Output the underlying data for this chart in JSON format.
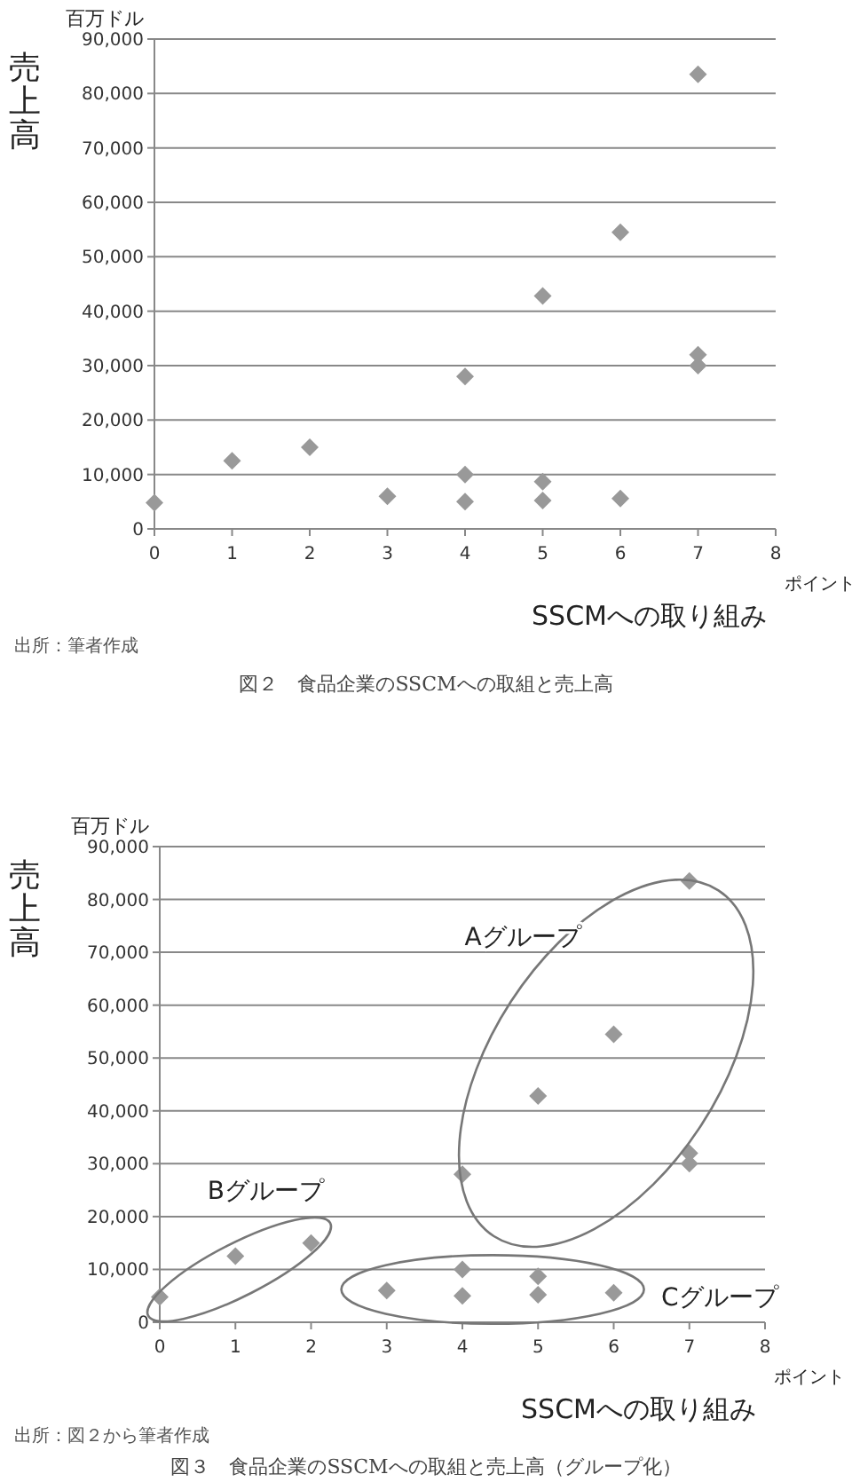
{
  "chart_data": [
    {
      "type": "scatter",
      "title": "図２　食品企業のSSCMへの取組と売上高",
      "xlabel": "SSCMへの取り組み",
      "ylabel": "売上高",
      "annotations": [
        "百万ドル",
        "ポイント",
        "出所：筆者作成"
      ],
      "xlim": [
        0,
        8
      ],
      "xticks": [
        0,
        1,
        2,
        3,
        4,
        5,
        6,
        7,
        8
      ],
      "ylim": [
        0,
        90000
      ],
      "yticks": [
        {
          "value": 0,
          "label": "0"
        },
        {
          "value": 10000,
          "label": "10,000"
        },
        {
          "value": 20000,
          "label": "20,000"
        },
        {
          "value": 30000,
          "label": "30,000"
        },
        {
          "value": 40000,
          "label": "40,000"
        },
        {
          "value": 50000,
          "label": "50,000"
        },
        {
          "value": 60000,
          "label": "60,000"
        },
        {
          "value": 70000,
          "label": "70,000"
        },
        {
          "value": 80000,
          "label": "80,000"
        },
        {
          "value": 90000,
          "label": "90,000"
        }
      ],
      "grid": "y",
      "marker": "diamond",
      "series": [
        {
          "color": "#999999",
          "x": [
            0,
            1,
            2,
            3,
            4,
            4,
            4,
            5,
            5,
            5,
            6,
            6,
            7,
            7,
            7
          ],
          "values": [
            4800,
            12500,
            15000,
            6000,
            28000,
            10000,
            5000,
            42800,
            8700,
            5200,
            54500,
            5600,
            83500,
            32000,
            30000
          ]
        }
      ]
    },
    {
      "type": "scatter",
      "title": "図３　食品企業のSSCMへの取組と売上高（グループ化）",
      "xlabel": "SSCMへの取り組み",
      "ylabel": "売上高",
      "annotations": [
        "百万ドル",
        "ポイント",
        "出所：図２から筆者作成",
        "Aグループ",
        "Bグループ",
        "Cグループ"
      ],
      "xlim": [
        0,
        8
      ],
      "xticks": [
        0,
        1,
        2,
        3,
        4,
        5,
        6,
        7,
        8
      ],
      "ylim": [
        0,
        90000
      ],
      "yticks": [
        {
          "value": 0,
          "label": "0"
        },
        {
          "value": 10000,
          "label": "10,000"
        },
        {
          "value": 20000,
          "label": "20,000"
        },
        {
          "value": 30000,
          "label": "30,000"
        },
        {
          "value": 40000,
          "label": "40,000"
        },
        {
          "value": 50000,
          "label": "50,000"
        },
        {
          "value": 60000,
          "label": "60,000"
        },
        {
          "value": 70000,
          "label": "70,000"
        },
        {
          "value": 80000,
          "label": "80,000"
        },
        {
          "value": 90000,
          "label": "90,000"
        }
      ],
      "grid": "y",
      "marker": "diamond",
      "series": [
        {
          "color": "#999999",
          "x": [
            0,
            1,
            2,
            3,
            4,
            4,
            4,
            5,
            5,
            5,
            6,
            6,
            7,
            7,
            7
          ],
          "values": [
            4800,
            12500,
            15000,
            6000,
            28000,
            10000,
            5000,
            42800,
            8700,
            5200,
            54500,
            5600,
            83500,
            32000,
            30000
          ]
        }
      ]
    }
  ]
}
